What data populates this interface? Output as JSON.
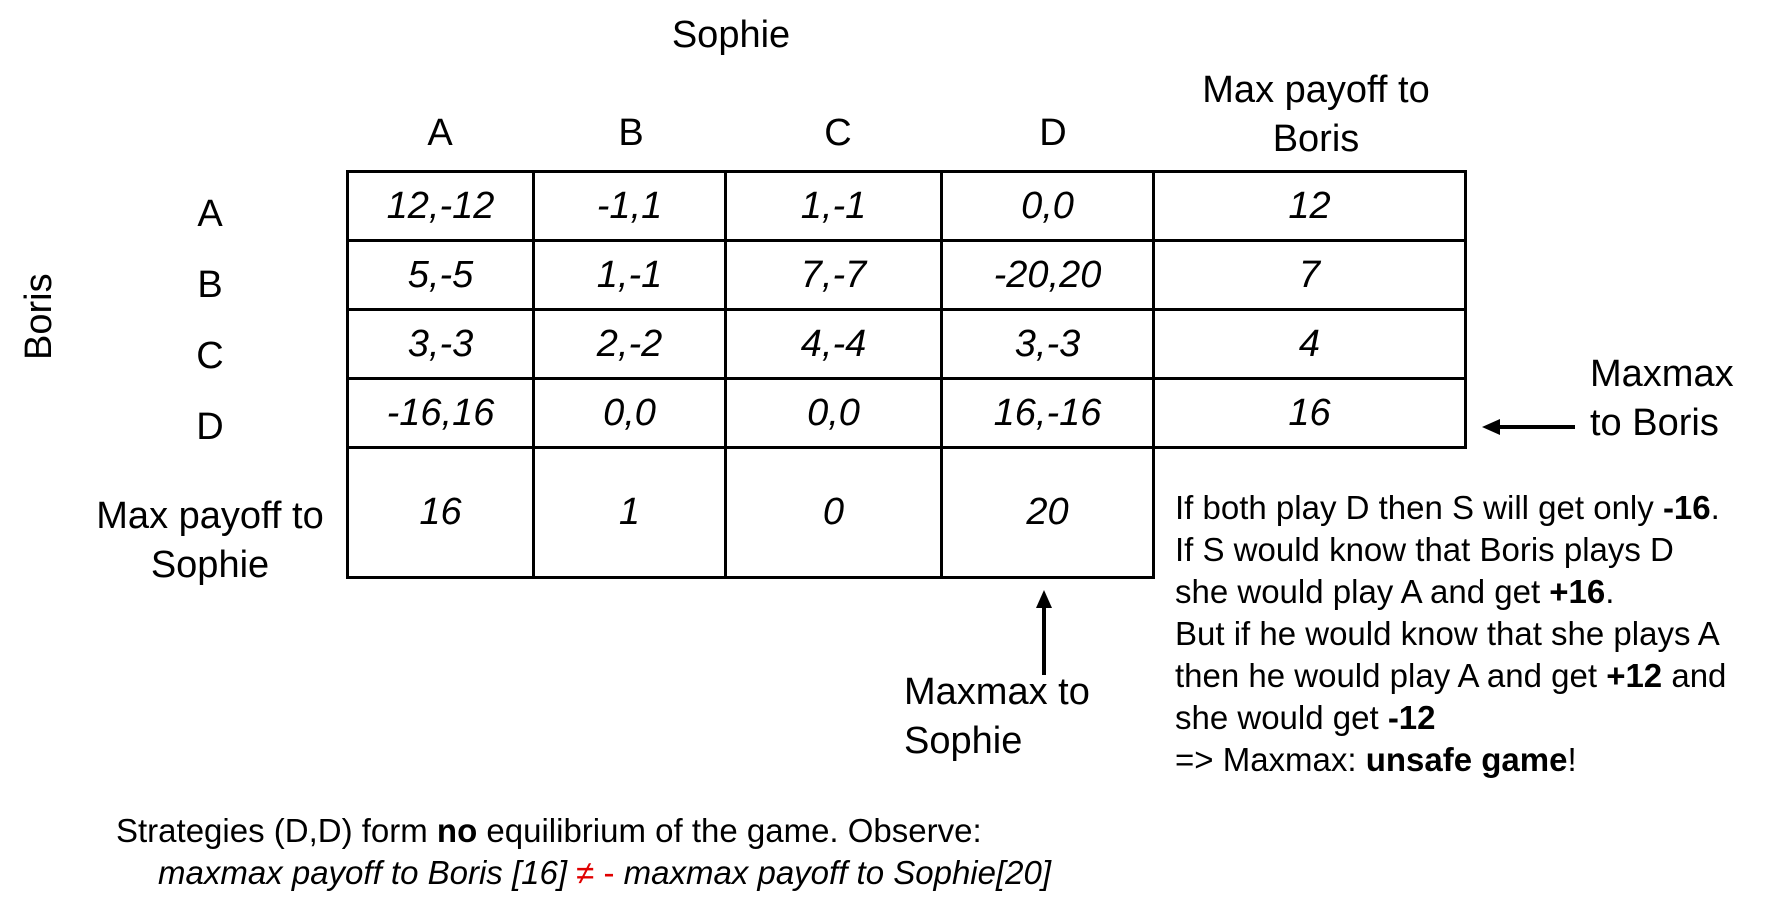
{
  "column_player": "Sophie",
  "row_player": "Boris",
  "column_headers": [
    "A",
    "B",
    "C",
    "D"
  ],
  "max_boris_header": [
    "Max payoff to",
    "Boris"
  ],
  "row_headers": [
    "A",
    "B",
    "C",
    "D"
  ],
  "payoffs": [
    [
      "12,-12",
      "-1,1",
      "1,-1",
      "0,0"
    ],
    [
      "5,-5",
      "1,-1",
      "7,-7",
      "-20,20"
    ],
    [
      "3,-3",
      "2,-2",
      "4,-4",
      "3,-3"
    ],
    [
      "-16,16",
      "0,0",
      "0,0",
      "16,-16"
    ]
  ],
  "max_payoff_boris": [
    "12",
    "7",
    "4",
    "16"
  ],
  "max_sophie_label": [
    "Max payoff to",
    "Sophie"
  ],
  "max_payoff_sophie": [
    "16",
    "1",
    "0",
    "20"
  ],
  "maxmax_boris_label": [
    "Maxmax",
    "to Boris"
  ],
  "maxmax_sophie_label": [
    "Maxmax to",
    "Sophie"
  ],
  "note": {
    "l1a": "If both play D then S will get only ",
    "l1b": "-16",
    "l1c": ".",
    "l2": "If S would know that Boris plays D",
    "l3a": "she would play A and get ",
    "l3b": "+16",
    "l3c": ".",
    "l4": "But if he would know that she plays A",
    "l5a": "then he would play A and get ",
    "l5b": "+12",
    "l5c": " and",
    "l6a": "she would get ",
    "l6b": "-12",
    "l7a": "=> Maxmax:  ",
    "l7b": "unsafe game",
    "l7c": "!"
  },
  "bottom": {
    "l1a": "Strategies (D,D) form ",
    "l1b": "no",
    "l1c": " equilibrium of the game. Observe:",
    "l2a": "maxmax payoff to Boris [16] ",
    "l2b": "≠ -",
    "l2c": " maxmax payoff to Sophie[20]"
  },
  "colors": {
    "neq": "#e00000",
    "lines": "#000000"
  }
}
